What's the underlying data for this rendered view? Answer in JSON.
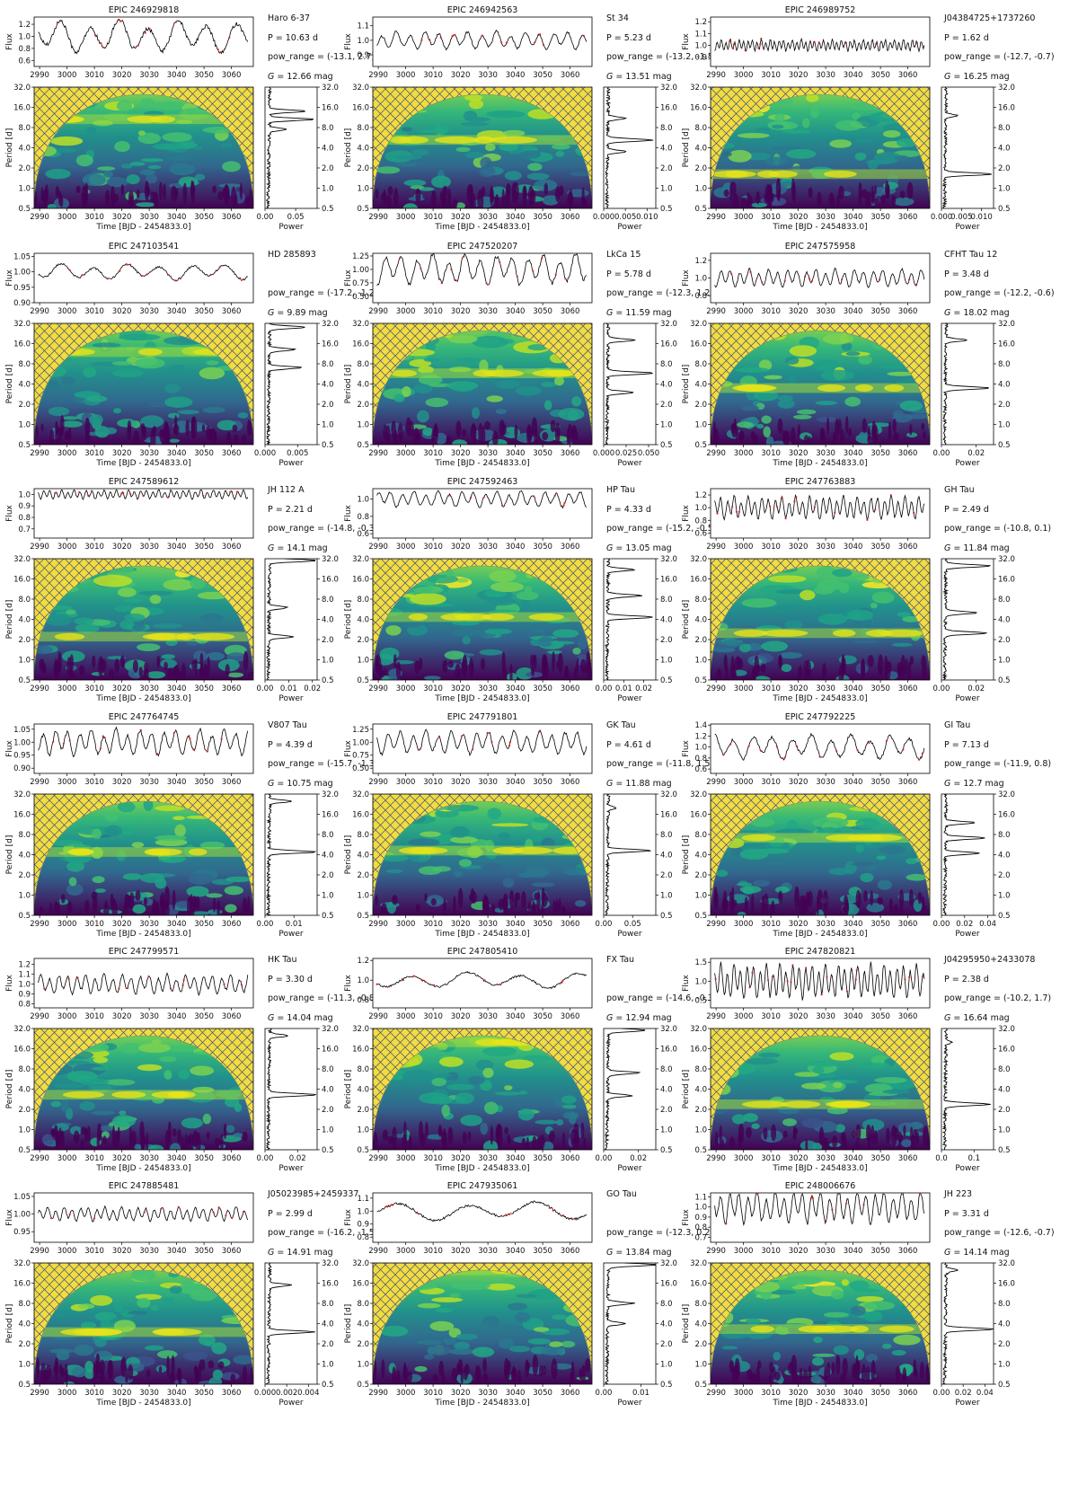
{
  "figure": {
    "colors": {
      "hatch_bg": "#f2dc3e",
      "hatch_line": "#3d4d8a",
      "viridis_dark": "#440154",
      "viridis_yellow": "#fde725",
      "lightcurve_points": "#000000",
      "lightcurve_flagged": "#d62728"
    },
    "common_axes": {
      "lc_ylabel": "Flux",
      "wavelet_ylabel": "Period [d]",
      "wavelet_xlabel": "Time [BJD - 2454833.0]",
      "power_xlabel": "Power",
      "time_ticks": [
        "2990",
        "3000",
        "3010",
        "3020",
        "3030",
        "3040",
        "3050",
        "3060",
        "3070"
      ],
      "wavelet_time_ticks": [
        "2990",
        "3000",
        "3010",
        "3020",
        "3030",
        "3040",
        "3050",
        "3060"
      ],
      "period_ticks": [
        "0.5",
        "1.0",
        "2.0",
        "4.0",
        "8.0",
        "16.0",
        "32.0"
      ],
      "period_log_scale": true,
      "time_range": [
        2988,
        3068
      ],
      "period_range": [
        0.5,
        32
      ]
    }
  },
  "chart_data": [
    {
      "type": "line",
      "panel": "light-curve + wavelet power spectrum + global power",
      "title": "EPIC 246929818",
      "name": "Haro 6-37",
      "period_text": "P = 10.63 d",
      "pow_text": "pow_range = (-13.1, 2.7)",
      "g_text": "12.66 mag",
      "flux_ticks": [
        "0.6",
        "0.8",
        "1.0",
        "1.2"
      ],
      "flux_range": [
        0.5,
        1.32
      ],
      "flux_amp": 0.27,
      "period_days": 10.63,
      "power_ticks": [
        "0.00",
        "0.05"
      ],
      "power_max": 0.085,
      "peaks": [
        {
          "period": 10.6,
          "power": 0.072
        },
        {
          "period": 14,
          "power": 0.06
        },
        {
          "period": 7.5,
          "power": 0.03
        }
      ]
    },
    {
      "type": "line",
      "panel": "light-curve + wavelet power spectrum + global power",
      "title": "EPIC 246942563",
      "name": "St 34",
      "period_text": "P = 5.23 d",
      "pow_text": "pow_range = (-13.2, -1.5)",
      "g_text": "13.51 mag",
      "flux_ticks": [
        "0.9",
        "1.0",
        "1.1"
      ],
      "flux_range": [
        0.82,
        1.16
      ],
      "flux_amp": 0.06,
      "period_days": 5.23,
      "power_ticks": [
        "0.000",
        "0.005",
        "0.010"
      ],
      "power_max": 0.012,
      "peaks": [
        {
          "period": 5.2,
          "power": 0.0105
        },
        {
          "period": 11,
          "power": 0.004
        },
        {
          "period": 3.5,
          "power": 0.0045
        }
      ]
    },
    {
      "type": "line",
      "panel": "light-curve + wavelet power spectrum + global power",
      "title": "EPIC 246989752",
      "name": "J04384725+1737260",
      "period_text": "P = 1.62 d",
      "pow_text": "pow_range = (-12.7, -0.7)",
      "g_text": "16.25 mag",
      "flux_ticks": [
        "0.9",
        "1.0",
        "1.1",
        "1.2"
      ],
      "flux_range": [
        0.82,
        1.24
      ],
      "flux_amp": 0.05,
      "period_days": 1.62,
      "power_ticks": [
        "0.000",
        "0.005",
        "0.010"
      ],
      "power_max": 0.013,
      "peaks": [
        {
          "period": 1.62,
          "power": 0.012
        },
        {
          "period": 12,
          "power": 0.003
        }
      ]
    },
    {
      "type": "line",
      "panel": "light-curve + wavelet power spectrum + global power",
      "title": "EPIC 247103541",
      "name": "HD 285893",
      "period_text": "",
      "pow_text": "pow_range = (-17.2, -1.2)",
      "g_text": "9.89 mag",
      "flux_ticks": [
        "0.90",
        "0.95",
        "1.00",
        "1.05"
      ],
      "flux_range": [
        0.9,
        1.06
      ],
      "flux_amp": 0.025,
      "period_days": 12,
      "power_ticks": [
        "0.000",
        "0.005"
      ],
      "power_max": 0.008,
      "peaks": [
        {
          "period": 28,
          "power": 0.0055
        },
        {
          "period": 7,
          "power": 0.005
        },
        {
          "period": 13,
          "power": 0.004
        }
      ]
    },
    {
      "type": "line",
      "panel": "light-curve + wavelet power spectrum + global power",
      "title": "EPIC 247520207",
      "name": "LkCa 15",
      "period_text": "P = 5.78 d",
      "pow_text": "pow_range = (-12.3, 1.2)",
      "g_text": "11.59 mag",
      "flux_ticks": [
        "0.50",
        "0.75",
        "1.00",
        "1.25"
      ],
      "flux_range": [
        0.38,
        1.3
      ],
      "flux_amp": 0.28,
      "period_days": 5.78,
      "power_ticks": [
        "0.000",
        "0.025",
        "0.050"
      ],
      "power_max": 0.058,
      "peaks": [
        {
          "period": 5.8,
          "power": 0.052
        },
        {
          "period": 3.0,
          "power": 0.03
        },
        {
          "period": 18,
          "power": 0.03
        }
      ]
    },
    {
      "type": "line",
      "panel": "light-curve + wavelet power spectrum + global power",
      "title": "EPIC 247575958",
      "name": "CFHT Tau 12",
      "period_text": "P = 3.48 d",
      "pow_text": "pow_range = (-12.2, -0.6)",
      "g_text": "18.02 mag",
      "flux_ticks": [
        "0.8",
        "1.0",
        "1.2"
      ],
      "flux_range": [
        0.72,
        1.28
      ],
      "flux_amp": 0.1,
      "period_days": 3.48,
      "power_ticks": [
        "0.00",
        "0.02"
      ],
      "power_max": 0.03,
      "peaks": [
        {
          "period": 3.48,
          "power": 0.026
        },
        {
          "period": 18,
          "power": 0.012
        }
      ]
    },
    {
      "type": "line",
      "panel": "light-curve + wavelet power spectrum + global power",
      "title": "EPIC 247589612",
      "name": "JH 112 A",
      "period_text": "P = 2.21 d",
      "pow_text": "pow_range = (-14.8, -0.3)",
      "g_text": "14.1 mag",
      "flux_ticks": [
        "0.7",
        "0.8",
        "0.9",
        "1.0"
      ],
      "flux_range": [
        0.62,
        1.05
      ],
      "flux_amp": 0.04,
      "period_days": 2.21,
      "power_ticks": [
        "0.00",
        "0.01",
        "0.02"
      ],
      "power_max": 0.022,
      "peaks": [
        {
          "period": 2.2,
          "power": 0.011
        },
        {
          "period": 30,
          "power": 0.02
        },
        {
          "period": 6,
          "power": 0.008
        }
      ]
    },
    {
      "type": "line",
      "panel": "light-curve + wavelet power spectrum + global power",
      "title": "EPIC 247592463",
      "name": "HP Tau",
      "period_text": "P = 4.33 d",
      "pow_text": "pow_range = (-15.2, -0.5)",
      "g_text": "13.05 mag",
      "flux_ticks": [
        "0.6",
        "0.8",
        "1.0"
      ],
      "flux_range": [
        0.55,
        1.12
      ],
      "flux_amp": 0.09,
      "period_days": 4.33,
      "power_ticks": [
        "0.00",
        "0.01",
        "0.02"
      ],
      "power_max": 0.026,
      "peaks": [
        {
          "period": 4.3,
          "power": 0.023
        },
        {
          "period": 9,
          "power": 0.017
        },
        {
          "period": 22,
          "power": 0.013
        }
      ]
    },
    {
      "type": "line",
      "panel": "light-curve + wavelet power spectrum + global power",
      "title": "EPIC 247763883",
      "name": "GH Tau",
      "period_text": "P = 2.49 d",
      "pow_text": "pow_range = (-10.8, 0.1)",
      "g_text": "11.84 mag",
      "flux_ticks": [
        "0.6",
        "0.8",
        "1.0",
        "1.2"
      ],
      "flux_range": [
        0.52,
        1.3
      ],
      "flux_amp": 0.18,
      "period_days": 2.49,
      "power_ticks": [
        "0.00",
        "0.02"
      ],
      "power_max": 0.03,
      "peaks": [
        {
          "period": 2.5,
          "power": 0.024
        },
        {
          "period": 5,
          "power": 0.018
        },
        {
          "period": 25,
          "power": 0.026
        }
      ]
    },
    {
      "type": "line",
      "panel": "light-curve + wavelet power spectrum + global power",
      "title": "EPIC 247764745",
      "name": "V807 Tau",
      "period_text": "P = 4.39 d",
      "pow_text": "pow_range = (-15.7, -1.3)",
      "g_text": "10.75 mag",
      "flux_ticks": [
        "0.90",
        "0.95",
        "1.00",
        "1.05"
      ],
      "flux_range": [
        0.88,
        1.07
      ],
      "flux_amp": 0.05,
      "period_days": 4.39,
      "power_ticks": [
        "0.00",
        "0.01"
      ],
      "power_max": 0.018,
      "peaks": [
        {
          "period": 4.4,
          "power": 0.016
        },
        {
          "period": 25,
          "power": 0.008
        }
      ]
    },
    {
      "type": "line",
      "panel": "light-curve + wavelet power spectrum + global power",
      "title": "EPIC 247791801",
      "name": "GK Tau",
      "period_text": "P = 4.61 d",
      "pow_text": "pow_range = (-11.8, 1.5)",
      "g_text": "11.88 mag",
      "flux_ticks": [
        "0.50",
        "0.75",
        "1.00",
        "1.25"
      ],
      "flux_range": [
        0.4,
        1.35
      ],
      "flux_amp": 0.22,
      "period_days": 4.61,
      "power_ticks": [
        "0.00",
        "0.05"
      ],
      "power_max": 0.09,
      "peaks": [
        {
          "period": 4.6,
          "power": 0.075
        },
        {
          "period": 20,
          "power": 0.015
        }
      ]
    },
    {
      "type": "line",
      "panel": "light-curve + wavelet power spectrum + global power",
      "title": "EPIC 247792225",
      "name": "GI Tau",
      "period_text": "P = 7.13 d",
      "pow_text": "pow_range = (-11.9, 0.8)",
      "g_text": "12.7 mag",
      "flux_ticks": [
        "0.6",
        "0.8",
        "1.0",
        "1.2",
        "1.4"
      ],
      "flux_range": [
        0.52,
        1.42
      ],
      "flux_amp": 0.22,
      "period_days": 7.13,
      "power_ticks": [
        "0.00",
        "0.02",
        "0.04"
      ],
      "power_max": 0.045,
      "peaks": [
        {
          "period": 7.1,
          "power": 0.035
        },
        {
          "period": 4.2,
          "power": 0.03
        },
        {
          "period": 12,
          "power": 0.025
        }
      ]
    },
    {
      "type": "line",
      "panel": "light-curve + wavelet power spectrum + global power",
      "title": "EPIC 247799571",
      "name": "HK Tau",
      "period_text": "P = 3.30 d",
      "pow_text": "pow_range = (-11.3, -0.8)",
      "g_text": "14.04 mag",
      "flux_ticks": [
        "0.8",
        "0.9",
        "1.0",
        "1.1",
        "1.2"
      ],
      "flux_range": [
        0.76,
        1.26
      ],
      "flux_amp": 0.1,
      "period_days": 3.3,
      "power_ticks": [
        "0.00",
        "0.02"
      ],
      "power_max": 0.032,
      "peaks": [
        {
          "period": 3.3,
          "power": 0.03
        },
        {
          "period": 25,
          "power": 0.012
        }
      ]
    },
    {
      "type": "line",
      "panel": "light-curve + wavelet power spectrum + global power",
      "title": "EPIC 247805410",
      "name": "FX Tau",
      "period_text": "",
      "pow_text": "pow_range = (-14.6, -0.3)",
      "g_text": "12.94 mag",
      "flux_ticks": [
        "0.8",
        "1.0",
        "1.2"
      ],
      "flux_range": [
        0.72,
        1.22
      ],
      "flux_amp": 0.08,
      "period_days": 20,
      "power_ticks": [
        "0.00",
        "0.02"
      ],
      "power_max": 0.03,
      "peaks": [
        {
          "period": 30,
          "power": 0.022
        },
        {
          "period": 7,
          "power": 0.018
        },
        {
          "period": 3.2,
          "power": 0.014
        }
      ]
    },
    {
      "type": "line",
      "panel": "light-curve + wavelet power spectrum + global power",
      "title": "EPIC 247820821",
      "name": "J04295950+2433078",
      "period_text": "P = 2.38 d",
      "pow_text": "pow_range = (-10.2, 1.7)",
      "g_text": "16.64 mag",
      "flux_ticks": [
        "0.5",
        "1.0",
        "1.5"
      ],
      "flux_range": [
        0.3,
        1.6
      ],
      "flux_amp": 0.45,
      "period_days": 2.38,
      "power_ticks": [
        "0.0",
        "0.1"
      ],
      "power_max": 0.16,
      "peaks": [
        {
          "period": 2.38,
          "power": 0.14
        },
        {
          "period": 20,
          "power": 0.02
        }
      ]
    },
    {
      "type": "line",
      "panel": "light-curve + wavelet power spectrum + global power",
      "title": "EPIC 247885481",
      "name": "J05023985+2459337",
      "period_text": "P = 2.99 d",
      "pow_text": "pow_range = (-16.2, -1.5)",
      "g_text": "14.91 mag",
      "flux_ticks": [
        "0.95",
        "1.00",
        "1.05"
      ],
      "flux_range": [
        0.92,
        1.06
      ],
      "flux_amp": 0.02,
      "period_days": 2.99,
      "power_ticks": [
        "0.000",
        "0.002",
        "0.004"
      ],
      "power_max": 0.0048,
      "peaks": [
        {
          "period": 3.0,
          "power": 0.0042
        },
        {
          "period": 15,
          "power": 0.002
        }
      ]
    },
    {
      "type": "line",
      "panel": "light-curve + wavelet power spectrum + global power",
      "title": "EPIC 247935061",
      "name": "GO Tau",
      "period_text": "",
      "pow_text": "pow_range = (-12.3, 0.2)",
      "g_text": "13.84 mag",
      "flux_ticks": [
        "0.8",
        "0.9",
        "1.0",
        "1.1"
      ],
      "flux_range": [
        0.76,
        1.14
      ],
      "flux_amp": 0.07,
      "period_days": 25,
      "power_ticks": [
        "0.00",
        "0.01"
      ],
      "power_max": 0.014,
      "peaks": [
        {
          "period": 30,
          "power": 0.013
        },
        {
          "period": 8,
          "power": 0.007
        },
        {
          "period": 4,
          "power": 0.005
        }
      ]
    },
    {
      "type": "line",
      "panel": "light-curve + wavelet power spectrum + global power",
      "title": "EPIC 248006676",
      "name": "JH 223",
      "period_text": "P = 3.31 d",
      "pow_text": "pow_range = (-12.6, -0.7)",
      "g_text": "14.14 mag",
      "flux_ticks": [
        "0.7",
        "0.8",
        "0.9",
        "1.0",
        "1.1"
      ],
      "flux_range": [
        0.65,
        1.14
      ],
      "flux_amp": 0.16,
      "period_days": 3.31,
      "power_ticks": [
        "0.00",
        "0.02",
        "0.04"
      ],
      "power_max": 0.048,
      "peaks": [
        {
          "period": 3.3,
          "power": 0.045
        },
        {
          "period": 25,
          "power": 0.012
        }
      ]
    }
  ]
}
